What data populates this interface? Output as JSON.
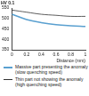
{
  "chart_data": {
    "type": "line",
    "ylabel": "HV 0.1",
    "xlabel": "Distance (mm)",
    "x": [
      0,
      0.2,
      0.4,
      0.6,
      0.8,
      1
    ],
    "series": [
      {
        "name": "Massive part presenting the anomaly (slow quenching speed)",
        "color": "#5aa0d0",
        "values": [
          520,
          495,
          480,
          470,
          465,
          462
        ]
      },
      {
        "name": "Thin part not showing the anomaly (high quenching speed)",
        "color": "#333333",
        "values": [
          540,
          530,
          520,
          515,
          510,
          510
        ]
      }
    ],
    "xlim": [
      0,
      1
    ],
    "xticks": [
      0,
      0.2,
      0.4,
      0.6,
      0.8,
      1
    ],
    "ylim": [
      350,
      550
    ],
    "yticks": [
      350,
      400,
      450,
      500,
      550
    ],
    "grid": false,
    "legend": "bottom"
  }
}
